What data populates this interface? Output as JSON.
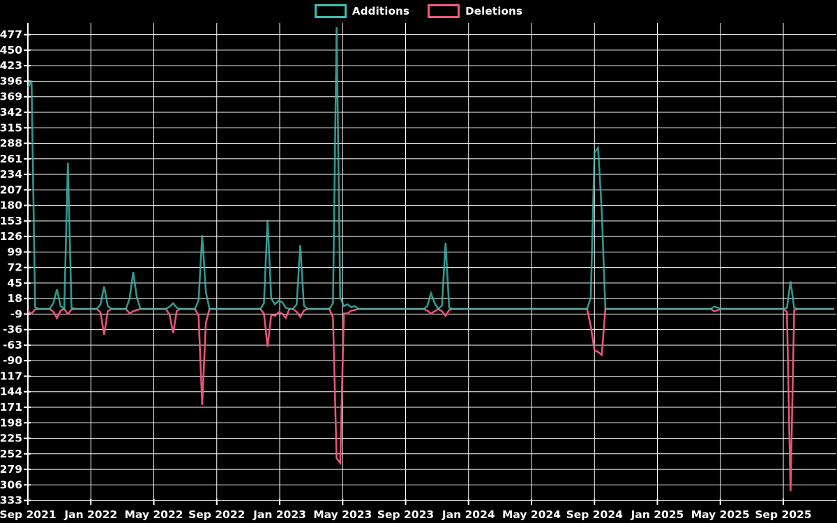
{
  "page": {
    "background": "#000000",
    "text_color": "#ffffff",
    "grid_color": "#ffffff"
  },
  "legend": {
    "items": [
      {
        "label": "Additions",
        "color": "#3fbdb2"
      },
      {
        "label": "Deletions",
        "color": "#f2597f"
      }
    ]
  },
  "chart_data": {
    "type": "line",
    "title": "",
    "xlabel": "",
    "ylabel": "",
    "grid": true,
    "legend_position": "top-center",
    "x_axis": {
      "unit": "week",
      "tick_labels": [
        "Sep 2021",
        "Jan 2022",
        "May 2022",
        "Sep 2022",
        "Jan 2023",
        "May 2023",
        "Sep 2023",
        "Jan 2024",
        "May 2024",
        "Sep 2024",
        "Jan 2025",
        "May 2025",
        "Sep 2025"
      ]
    },
    "y_axis": {
      "min": -333,
      "max": 477,
      "step": 27,
      "ticks": [
        477,
        450,
        423,
        396,
        369,
        342,
        315,
        288,
        261,
        234,
        207,
        180,
        153,
        126,
        99,
        72,
        45,
        18,
        -9,
        -36,
        -63,
        -90,
        -117,
        -144,
        -171,
        -198,
        -225,
        -252,
        -279,
        -306,
        -333
      ]
    },
    "n_weeks": 223,
    "series": [
      {
        "name": "Additions",
        "color": "#3fbdb2",
        "default": 0,
        "points": {
          "0": 385,
          "1": 397,
          "2": 3,
          "7": 10,
          "8": 34,
          "9": 5,
          "11": 254,
          "12": 2,
          "20": 8,
          "21": 39,
          "22": 5,
          "28": 18,
          "29": 64,
          "30": 20,
          "39": 4,
          "40": 10,
          "41": 2,
          "47": 15,
          "48": 128,
          "49": 30,
          "65": 10,
          "66": 155,
          "67": 18,
          "68": 8,
          "69": 14,
          "70": 12,
          "71": 2,
          "74": 8,
          "75": 111,
          "76": 6,
          "84": 10,
          "85": 490,
          "86": 20,
          "87": 5,
          "88": 8,
          "89": 3,
          "90": 5,
          "110": 5,
          "111": 27,
          "112": 10,
          "114": 6,
          "115": 115,
          "116": 2,
          "155": 20,
          "156": 272,
          "157": 280,
          "158": 170,
          "189": 4,
          "190": 2,
          "209": 2,
          "210": 48,
          "211": 2
        }
      },
      {
        "name": "Deletions",
        "color": "#f2597f",
        "default": 0,
        "points": {
          "0": -4,
          "1": -8,
          "2": -1,
          "7": -5,
          "8": -16,
          "9": -3,
          "11": -9,
          "12": -1,
          "20": -6,
          "21": -45,
          "22": -4,
          "28": -8,
          "29": -4,
          "30": -2,
          "39": -10,
          "40": -42,
          "41": -3,
          "47": -12,
          "48": -167,
          "49": -25,
          "65": -8,
          "66": -66,
          "67": -10,
          "68": -12,
          "69": -6,
          "70": -8,
          "71": -16,
          "74": -5,
          "75": -14,
          "76": -3,
          "84": -15,
          "85": -260,
          "86": -268,
          "87": -8,
          "88": -8,
          "89": -3,
          "90": -2,
          "110": -3,
          "111": -8,
          "112": -4,
          "114": -4,
          "115": -12,
          "116": -2,
          "155": -30,
          "156": -72,
          "157": -75,
          "158": -80,
          "189": -4,
          "190": -2,
          "209": -5,
          "210": -317,
          "211": -2
        }
      }
    ]
  }
}
